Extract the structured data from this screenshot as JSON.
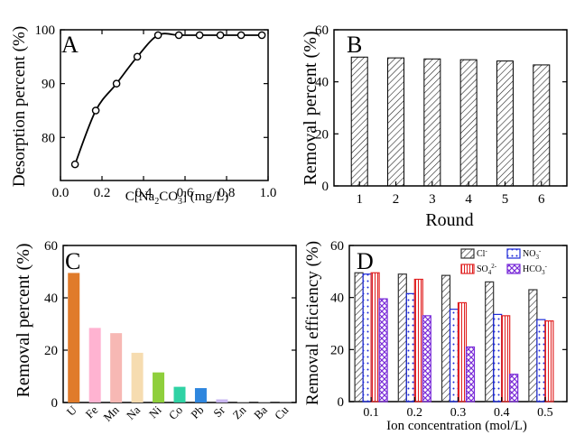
{
  "colors": {
    "u": "#E07B2A",
    "fe": "#FFB3D1",
    "mn": "#F7B8B4",
    "na": "#F6DCB0",
    "ni": "#8FCF3C",
    "co": "#2FD2A4",
    "pb": "#2E86DE",
    "sr": "#C9B6F0",
    "zn": "#dddddd",
    "ba": "#dddddd",
    "cu": "#dddddd",
    "cl": "#333333",
    "so4": "#E02020",
    "no3": "#1E2BD8",
    "hco3": "#7A2CD8"
  },
  "chart_data": [
    {
      "panel": "A",
      "type": "line",
      "xlabel": "C[Na2CO3] (mg/L)",
      "xlabel_parts": {
        "pre": "C[Na",
        "sub1": "2",
        "mid": "CO",
        "sub2": "3",
        "post": "] (mg/L)"
      },
      "ylabel": "Desorption percent (%)",
      "x": [
        0.07,
        0.17,
        0.27,
        0.37,
        0.47,
        0.57,
        0.67,
        0.77,
        0.87,
        0.97
      ],
      "y": [
        75,
        85,
        90,
        95,
        99,
        99,
        99,
        99,
        99,
        99
      ],
      "xlim": [
        0.0,
        1.0
      ],
      "ylim": [
        72,
        100
      ],
      "xticks": [
        "0.0",
        "0.2",
        "0.4",
        "0.6",
        "0.8",
        "1.0"
      ],
      "xtick_values": [
        0.0,
        0.2,
        0.4,
        0.6,
        0.8,
        1.0
      ],
      "yticks": [
        "70",
        "80",
        "90",
        "100"
      ],
      "ytick_values": [
        70,
        80,
        90,
        100
      ]
    },
    {
      "panel": "B",
      "type": "bar",
      "xlabel": "Round",
      "ylabel": "Removal percent (%)",
      "categories": [
        "1",
        "2",
        "3",
        "4",
        "5",
        "6"
      ],
      "values": [
        49.5,
        49.2,
        48.8,
        48.5,
        48.0,
        46.5
      ],
      "ylim": [
        0,
        60
      ],
      "yticks": [
        "0",
        "20",
        "40",
        "60"
      ],
      "ytick_values": [
        0,
        20,
        40,
        60
      ]
    },
    {
      "panel": "C",
      "type": "bar",
      "ylabel": "Removal percent (%)",
      "categories": [
        "U",
        "Fe",
        "Mn",
        "Na",
        "Ni",
        "Co",
        "Pb",
        "Sr",
        "Zn",
        "Ba",
        "Cu"
      ],
      "values": [
        49.5,
        28.5,
        26.5,
        19.0,
        11.5,
        6.0,
        5.5,
        1.2,
        0.2,
        0.2,
        0.1
      ],
      "color_keys": [
        "u",
        "fe",
        "mn",
        "na",
        "ni",
        "co",
        "pb",
        "sr",
        "zn",
        "ba",
        "cu"
      ],
      "ylim": [
        0,
        60
      ],
      "yticks": [
        "0",
        "20",
        "40",
        "60"
      ],
      "ytick_values": [
        0,
        20,
        40,
        60
      ]
    },
    {
      "panel": "D",
      "type": "bar",
      "xlabel": "Ion concentration (mol/L)",
      "ylabel": "Removal efficiency (%)",
      "categories": [
        "0.1",
        "0.2",
        "0.3",
        "0.4",
        "0.5"
      ],
      "ylim": [
        0,
        60
      ],
      "yticks": [
        "0",
        "20",
        "40",
        "60"
      ],
      "ytick_values": [
        0,
        20,
        40,
        60
      ],
      "series": [
        {
          "name": "Cl-",
          "base": "Cl",
          "sup": "-",
          "sub": "",
          "color_key": "cl",
          "pattern": "hatch",
          "values": [
            49.5,
            49.0,
            48.5,
            46.0,
            43.0
          ]
        },
        {
          "name": "NO3-",
          "base": "NO",
          "sub": "3",
          "sup": "-",
          "color_key": "no3",
          "pattern": "dots",
          "values": [
            49.0,
            41.5,
            35.5,
            33.5,
            31.5
          ]
        },
        {
          "name": "SO42-",
          "base": "SO",
          "sub": "4",
          "sup": "2-",
          "color_key": "so4",
          "pattern": "vlines",
          "values": [
            49.5,
            47.0,
            38.0,
            33.0,
            31.0
          ]
        },
        {
          "name": "HCO3-",
          "base": "HCO",
          "sub": "3",
          "sup": "-",
          "color_key": "hco3",
          "pattern": "cross",
          "values": [
            39.5,
            33.0,
            21.0,
            10.5,
            0
          ]
        }
      ]
    }
  ],
  "panel_letters": {
    "a": "A",
    "b": "B",
    "c": "C",
    "d": "D"
  }
}
